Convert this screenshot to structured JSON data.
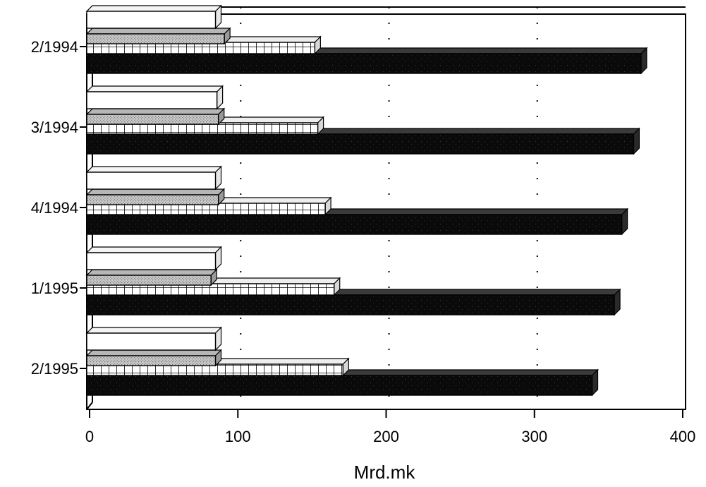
{
  "chart_data": {
    "type": "bar",
    "orientation": "horizontal",
    "style": "3d",
    "title": "",
    "xlabel": "Mrd.mk",
    "ylabel": "",
    "xlim": [
      0,
      400
    ],
    "xticks": [
      0,
      100,
      200,
      300,
      400
    ],
    "grid": "vertical dotted",
    "legend": "none",
    "categories": [
      "2/1994",
      "3/1994",
      "4/1994",
      "1/1995",
      "2/1995"
    ],
    "series": [
      {
        "pattern": "white",
        "values": [
          83,
          84,
          83,
          83,
          83
        ]
      },
      {
        "pattern": "light-gray-dotted",
        "values": [
          89,
          85,
          85,
          80,
          83
        ]
      },
      {
        "pattern": "white-grid",
        "values": [
          150,
          152,
          157,
          163,
          169
        ]
      },
      {
        "pattern": "black-speckled",
        "values": [
          370,
          365,
          357,
          352,
          337
        ]
      }
    ]
  }
}
